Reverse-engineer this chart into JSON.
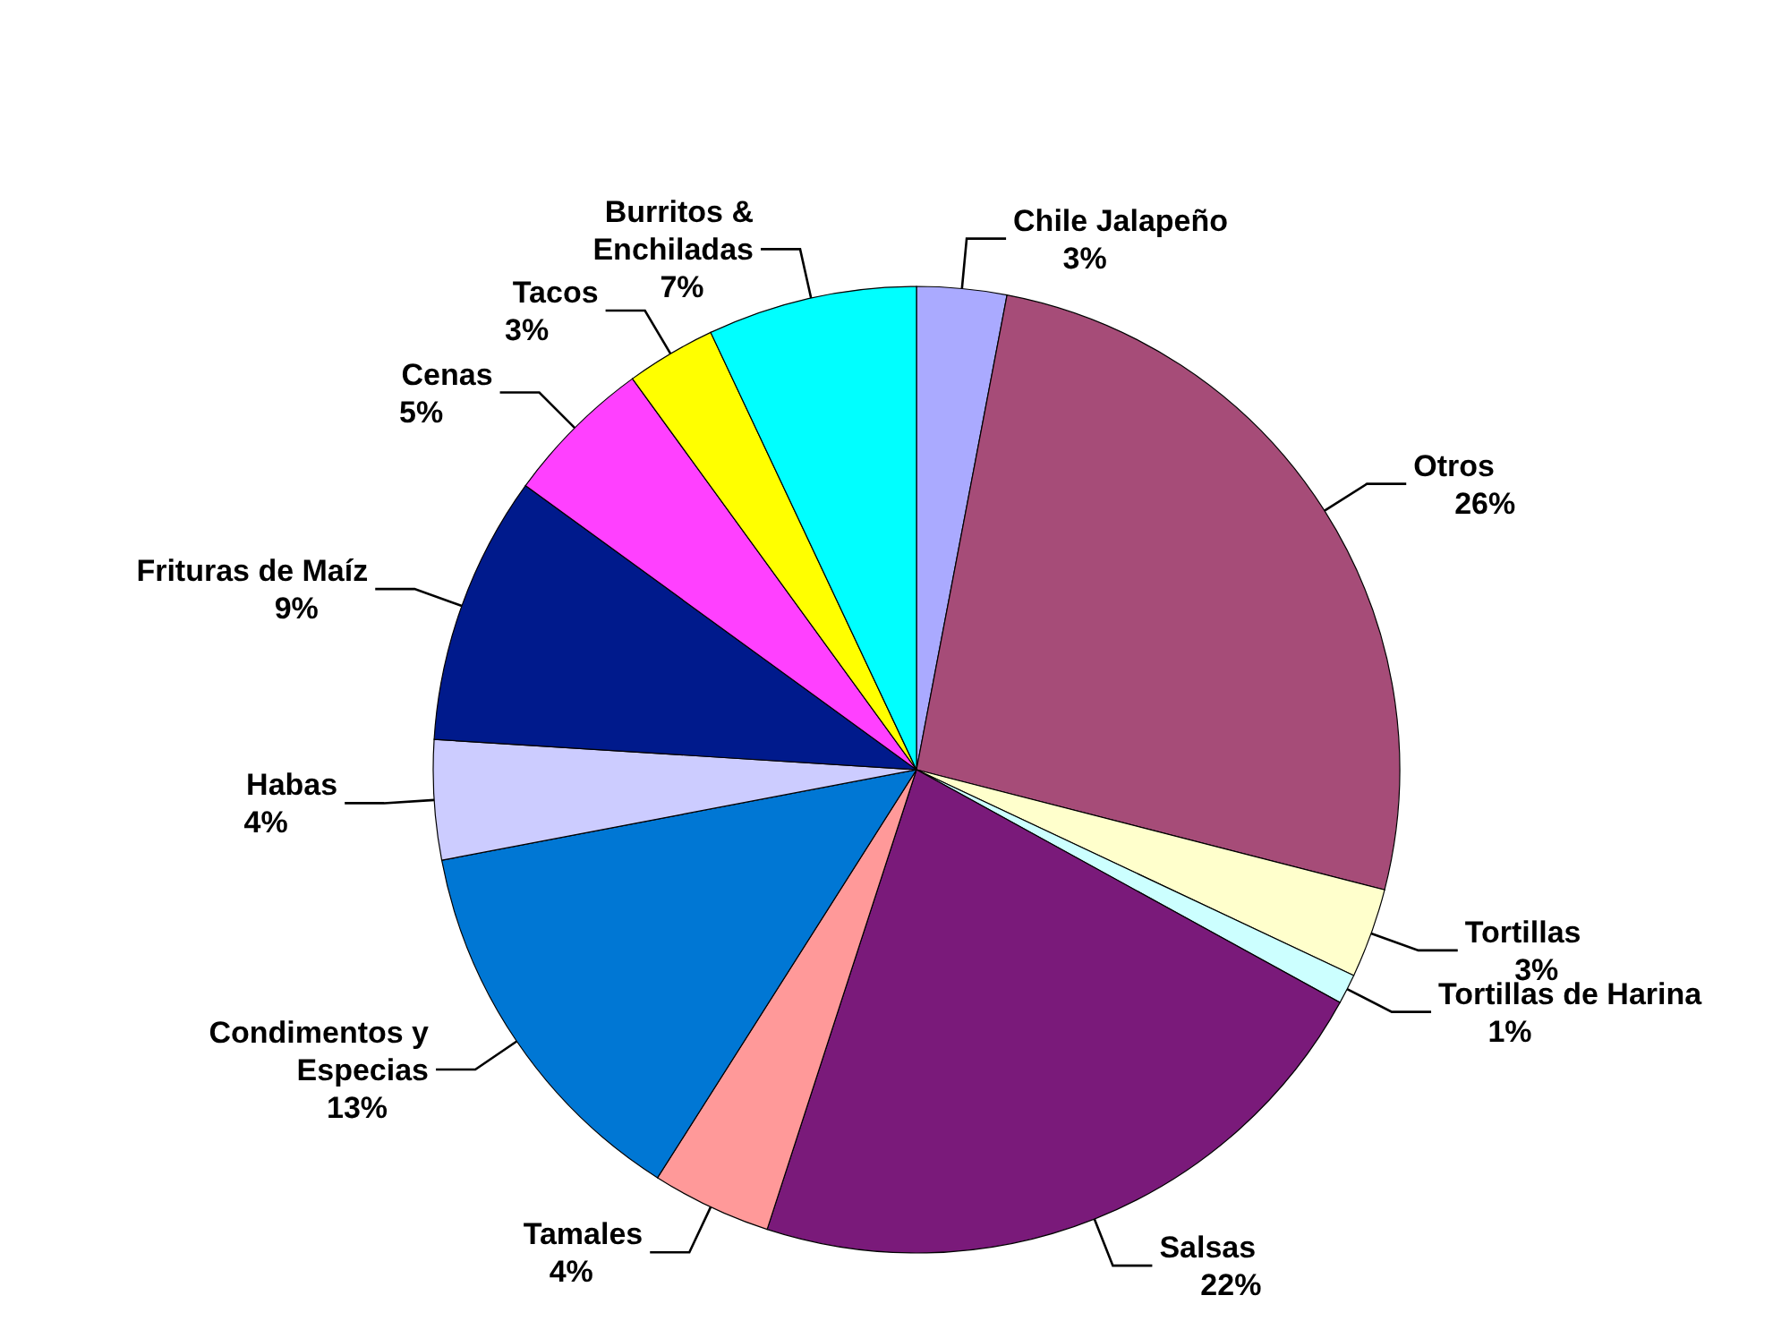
{
  "chart_data": {
    "type": "pie",
    "categories": [
      "Chile Jalapeño",
      "Otros",
      "Tortillas",
      "Tortillas de Harina",
      "Salsas",
      "Tamales",
      "Condimentos y Especias",
      "Habas",
      "Frituras de Maíz",
      "Cenas",
      "Tacos",
      "Burritos & Enchiladas"
    ],
    "values": [
      3,
      26,
      3,
      1,
      22,
      4,
      13,
      4,
      9,
      5,
      3,
      7
    ],
    "value_labels": [
      "3%",
      "26%",
      "3%",
      "1%",
      "22%",
      "4%",
      "13%",
      "4%",
      "9%",
      "5%",
      "3%",
      "7%"
    ],
    "colors": [
      "#aaaaff",
      "#a64c78",
      "#ffffcc",
      "#ccffff",
      "#7a1a7a",
      "#ff9999",
      "#0077d4",
      "#ccccff",
      "#001a8c",
      "#ff40ff",
      "#ffff00",
      "#00ffff"
    ],
    "legend": false
  }
}
